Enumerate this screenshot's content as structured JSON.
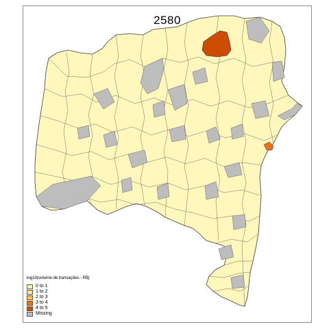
{
  "map": {
    "title": "2580",
    "colors": {
      "c0": "#fff7bc",
      "c1": "#fee391",
      "c2": "#fec44f",
      "c3": "#ec7014",
      "c4": "#cc4c02",
      "missing": "#bdbdbd",
      "border": "#3a3a3a"
    }
  },
  "legend": {
    "title": "log10(volume de transações - R$)",
    "items": [
      {
        "label": "0 to 1",
        "color": "#fff7bc"
      },
      {
        "label": "1 to 2",
        "color": "#fee391"
      },
      {
        "label": "2 to 3",
        "color": "#fec44f"
      },
      {
        "label": "3 to 4",
        "color": "#ec7014"
      },
      {
        "label": "4 to 5",
        "color": "#cc4c02"
      },
      {
        "label": "Missing",
        "color": "#bdbdbd"
      }
    ]
  }
}
